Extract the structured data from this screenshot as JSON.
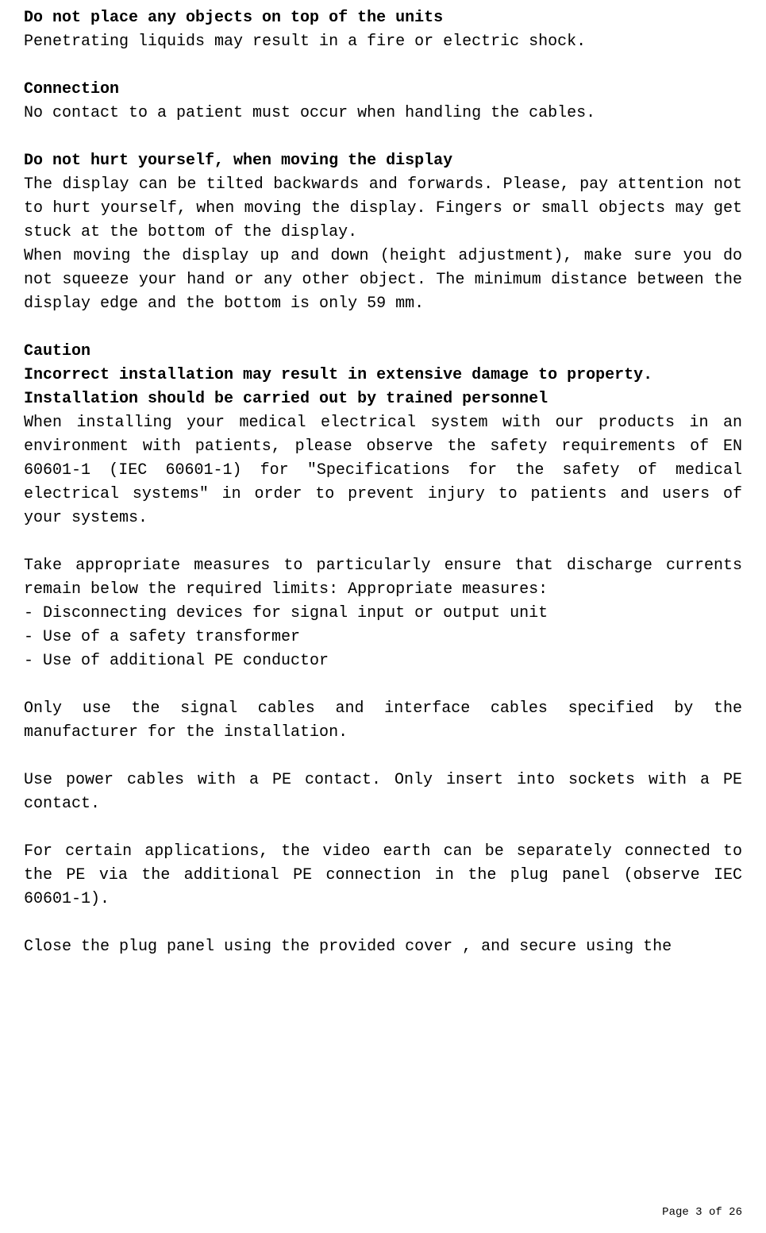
{
  "sections": [
    {
      "heading": "Do not place any objects on top of the units",
      "paras": [
        "Penetrating liquids may result in a fire or electric shock."
      ]
    },
    {
      "heading": "Connection",
      "paras": [
        "No contact to a patient must occur when handling the cables."
      ]
    },
    {
      "heading": "Do not hurt yourself, when moving the display",
      "paras": [
        "The display can be tilted backwards and forwards. Please, pay attention not to hurt yourself, when moving the display. Fingers or small objects may get stuck at the bottom of the display.",
        "When moving the display up and down (height adjustment), make sure you do not squeeze your hand or any other object. The minimum distance between the display edge and the bottom is only 59 mm."
      ]
    }
  ],
  "caution": {
    "heading": "Caution",
    "boldLines": [
      "Incorrect installation may result in extensive damage to property.",
      "Installation should be carried out by trained personnel"
    ],
    "paras": [
      "When installing your medical electrical system with our products in an environment with patients, please observe the safety requirements of EN 60601-1 (IEC 60601-1) for \"Specifications for the safety of medical electrical systems\" in order to prevent injury to patients and users of your systems."
    ],
    "measures_intro": "Take appropriate measures to particularly ensure that discharge currents remain below the required limits: Appropriate measures:",
    "measures": [
      "- Disconnecting devices for signal input or output unit",
      "- Use of a safety transformer",
      "- Use of additional PE conductor"
    ],
    "tail_paras": [
      "Only use the signal cables and interface cables specified by the manufacturer for the installation.",
      "Use power cables with a PE contact. Only insert into sockets with a PE contact.",
      "For certain applications, the video earth can be separately connected to the PE via the additional PE connection in the plug panel (observe IEC 60601-1).",
      "Close the plug panel using the provided cover , and secure using the"
    ]
  },
  "footer": "Page 3 of 26"
}
